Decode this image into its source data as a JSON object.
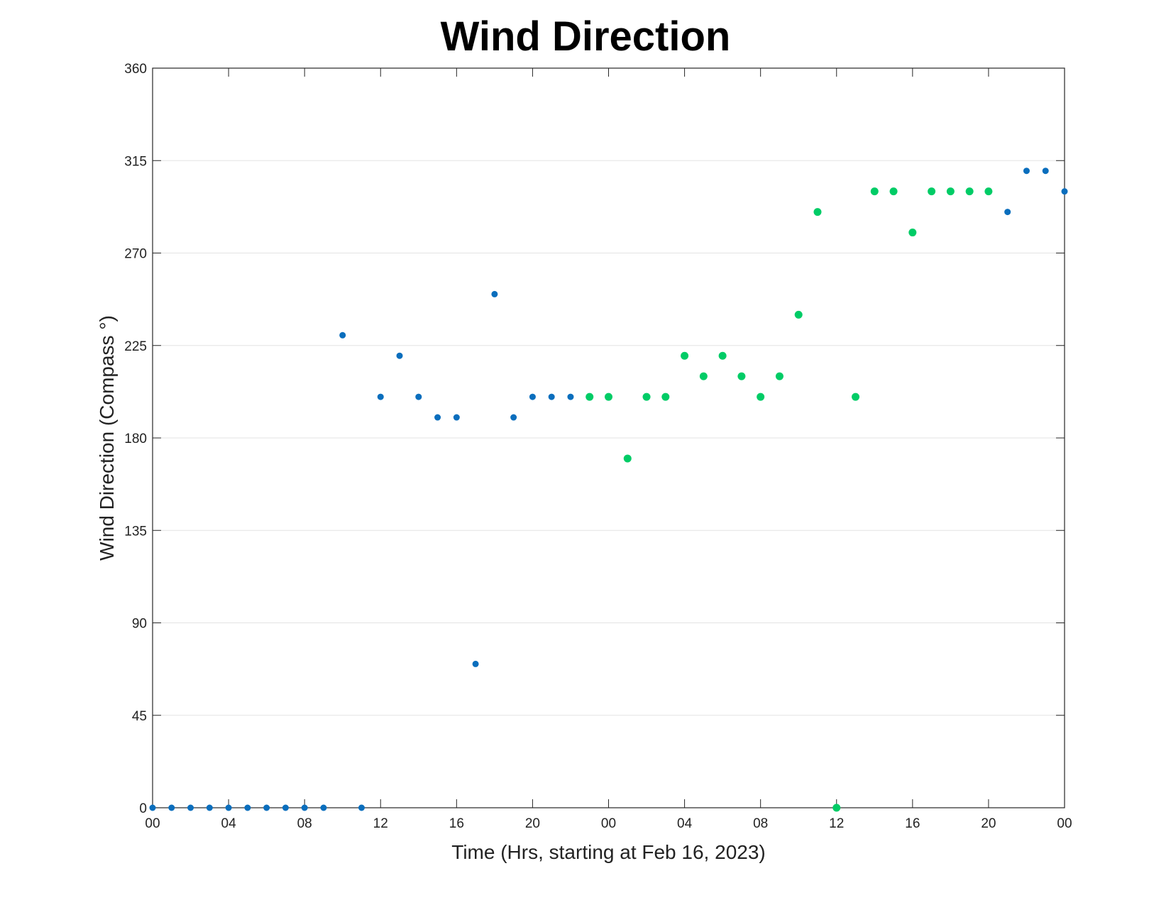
{
  "chart_data": {
    "type": "scatter",
    "title": "Wind Direction",
    "xlabel": "Time (Hrs, starting at Feb 16, 2023)",
    "ylabel": "Wind Direction (Compass °)",
    "ylim": [
      0,
      360
    ],
    "xlim": [
      "2023-02-16 00:00",
      "2023-02-18 00:00"
    ],
    "y_ticks": [
      0,
      45,
      90,
      135,
      180,
      225,
      270,
      315,
      360
    ],
    "x_ticks": [
      {
        "t": "2023-02-16 00:00",
        "label": "00"
      },
      {
        "t": "2023-02-16 04:00",
        "label": "04"
      },
      {
        "t": "2023-02-16 08:00",
        "label": "08"
      },
      {
        "t": "2023-02-16 12:00",
        "label": "12"
      },
      {
        "t": "2023-02-16 16:00",
        "label": "16"
      },
      {
        "t": "2023-02-16 20:00",
        "label": "20"
      },
      {
        "t": "2023-02-17 00:00",
        "label": "00"
      },
      {
        "t": "2023-02-17 04:00",
        "label": "04"
      },
      {
        "t": "2023-02-17 08:00",
        "label": "08"
      },
      {
        "t": "2023-02-17 12:00",
        "label": "12"
      },
      {
        "t": "2023-02-17 16:00",
        "label": "16"
      },
      {
        "t": "2023-02-17 20:00",
        "label": "20"
      },
      {
        "t": "2023-02-18 00:00",
        "label": "00"
      }
    ],
    "grid": "horizontal",
    "series": [
      {
        "color": "#0a6ebd",
        "points": [
          {
            "x": "2023-02-16 00:00",
            "y": 0
          },
          {
            "x": "2023-02-16 01:00",
            "y": 0
          },
          {
            "x": "2023-02-16 02:00",
            "y": 0
          },
          {
            "x": "2023-02-16 03:00",
            "y": 0
          },
          {
            "x": "2023-02-16 04:00",
            "y": 0
          },
          {
            "x": "2023-02-16 05:00",
            "y": 0
          },
          {
            "x": "2023-02-16 06:00",
            "y": 0
          },
          {
            "x": "2023-02-16 07:00",
            "y": 0
          },
          {
            "x": "2023-02-16 08:00",
            "y": 0
          },
          {
            "x": "2023-02-16 09:00",
            "y": 0
          },
          {
            "x": "2023-02-16 10:00",
            "y": 230
          },
          {
            "x": "2023-02-16 11:00",
            "y": 0
          },
          {
            "x": "2023-02-16 12:00",
            "y": 200
          },
          {
            "x": "2023-02-16 13:00",
            "y": 220
          },
          {
            "x": "2023-02-16 14:00",
            "y": 200
          },
          {
            "x": "2023-02-16 15:00",
            "y": 190
          },
          {
            "x": "2023-02-16 16:00",
            "y": 190
          },
          {
            "x": "2023-02-16 17:00",
            "y": 70
          },
          {
            "x": "2023-02-16 18:00",
            "y": 250
          },
          {
            "x": "2023-02-16 19:00",
            "y": 190
          },
          {
            "x": "2023-02-16 20:00",
            "y": 200
          },
          {
            "x": "2023-02-16 21:00",
            "y": 200
          },
          {
            "x": "2023-02-16 22:00",
            "y": 200
          },
          {
            "x": "2023-02-17 21:00",
            "y": 290
          },
          {
            "x": "2023-02-17 22:00",
            "y": 310
          },
          {
            "x": "2023-02-17 23:00",
            "y": 310
          },
          {
            "x": "2023-02-18 00:00",
            "y": 300
          }
        ]
      },
      {
        "color": "#00cc66",
        "points": [
          {
            "x": "2023-02-16 23:00",
            "y": 200
          },
          {
            "x": "2023-02-17 00:00",
            "y": 200
          },
          {
            "x": "2023-02-17 01:00",
            "y": 170
          },
          {
            "x": "2023-02-17 02:00",
            "y": 200
          },
          {
            "x": "2023-02-17 03:00",
            "y": 200
          },
          {
            "x": "2023-02-17 04:00",
            "y": 220
          },
          {
            "x": "2023-02-17 05:00",
            "y": 210
          },
          {
            "x": "2023-02-17 06:00",
            "y": 220
          },
          {
            "x": "2023-02-17 07:00",
            "y": 210
          },
          {
            "x": "2023-02-17 08:00",
            "y": 200
          },
          {
            "x": "2023-02-17 09:00",
            "y": 210
          },
          {
            "x": "2023-02-17 10:00",
            "y": 240
          },
          {
            "x": "2023-02-17 11:00",
            "y": 290
          },
          {
            "x": "2023-02-17 12:00",
            "y": 0
          },
          {
            "x": "2023-02-17 13:00",
            "y": 200
          },
          {
            "x": "2023-02-17 14:00",
            "y": 300
          },
          {
            "x": "2023-02-17 15:00",
            "y": 300
          },
          {
            "x": "2023-02-17 16:00",
            "y": 280
          },
          {
            "x": "2023-02-17 17:00",
            "y": 300
          },
          {
            "x": "2023-02-17 18:00",
            "y": 300
          },
          {
            "x": "2023-02-17 19:00",
            "y": 300
          },
          {
            "x": "2023-02-17 20:00",
            "y": 300
          }
        ]
      }
    ]
  }
}
